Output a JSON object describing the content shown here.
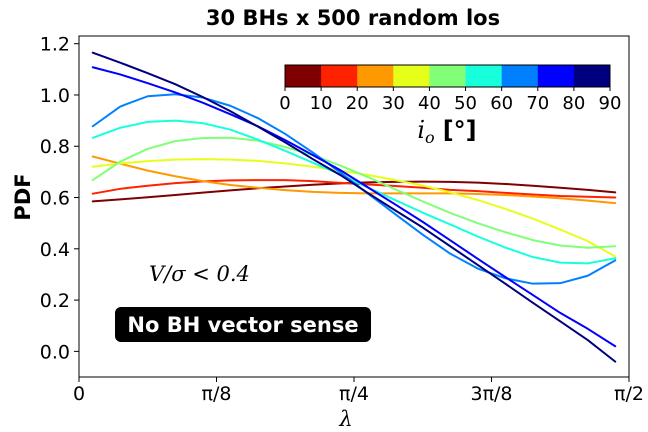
{
  "chart_data": {
    "type": "line",
    "title": "30 BHs x 500 random los",
    "xlabel": "λ",
    "ylabel": "PDF",
    "xlim": [
      0,
      1.5708
    ],
    "ylim": [
      -0.1,
      1.23
    ],
    "xticks": [
      0,
      0.3927,
      0.7854,
      1.1781,
      1.5708
    ],
    "xtick_labels": [
      "0",
      "π/8",
      "π/4",
      "3π/8",
      "π/2"
    ],
    "yticks": [
      0.0,
      0.2,
      0.4,
      0.6,
      0.8,
      1.0,
      1.2
    ],
    "ytick_labels": [
      "0.0",
      "0.2",
      "0.4",
      "0.6",
      "0.8",
      "1.0",
      "1.2"
    ],
    "grid": false,
    "x": [
      0.0393,
      0.1178,
      0.1963,
      0.2749,
      0.3534,
      0.432,
      0.5105,
      0.589,
      0.6676,
      0.7461,
      0.8247,
      0.9032,
      0.9817,
      1.0603,
      1.1388,
      1.2174,
      1.2959,
      1.3744,
      1.453,
      1.5315
    ],
    "series": [
      {
        "color": "#7f0000",
        "values": [
          0.585,
          0.593,
          0.601,
          0.61,
          0.619,
          0.628,
          0.636,
          0.643,
          0.65,
          0.655,
          0.659,
          0.661,
          0.662,
          0.661,
          0.658,
          0.653,
          0.646,
          0.638,
          0.63,
          0.62
        ]
      },
      {
        "color": "#ff2200",
        "values": [
          0.615,
          0.634,
          0.646,
          0.656,
          0.663,
          0.667,
          0.668,
          0.668,
          0.664,
          0.657,
          0.651,
          0.645,
          0.638,
          0.63,
          0.625,
          0.618,
          0.612,
          0.606,
          0.603,
          0.6
        ]
      },
      {
        "color": "#ff9900",
        "values": [
          0.76,
          0.732,
          0.705,
          0.683,
          0.664,
          0.649,
          0.638,
          0.629,
          0.622,
          0.618,
          0.616,
          0.616,
          0.616,
          0.616,
          0.614,
          0.61,
          0.604,
          0.597,
          0.588,
          0.578
        ]
      },
      {
        "color": "#e6ff1a",
        "values": [
          0.72,
          0.733,
          0.742,
          0.748,
          0.75,
          0.748,
          0.743,
          0.733,
          0.72,
          0.705,
          0.688,
          0.668,
          0.647,
          0.62,
          0.59,
          0.556,
          0.518,
          0.475,
          0.43,
          0.37
        ]
      },
      {
        "color": "#80ff77",
        "values": [
          0.668,
          0.74,
          0.79,
          0.82,
          0.832,
          0.833,
          0.822,
          0.797,
          0.765,
          0.725,
          0.68,
          0.632,
          0.585,
          0.54,
          0.5,
          0.465,
          0.434,
          0.413,
          0.404,
          0.41
        ]
      },
      {
        "color": "#18ffdc",
        "values": [
          0.833,
          0.872,
          0.895,
          0.9,
          0.89,
          0.865,
          0.826,
          0.782,
          0.736,
          0.69,
          0.639,
          0.59,
          0.541,
          0.495,
          0.448,
          0.405,
          0.368,
          0.346,
          0.343,
          0.363
        ]
      },
      {
        "color": "#0080ff",
        "values": [
          0.878,
          0.955,
          0.995,
          1.003,
          0.99,
          0.958,
          0.91,
          0.848,
          0.776,
          0.698,
          0.616,
          0.535,
          0.455,
          0.381,
          0.323,
          0.285,
          0.264,
          0.266,
          0.295,
          0.355
        ]
      },
      {
        "color": "#0000ff",
        "values": [
          1.108,
          1.08,
          1.046,
          1.01,
          0.97,
          0.925,
          0.878,
          0.824,
          0.766,
          0.707,
          0.64,
          0.573,
          0.505,
          0.433,
          0.361,
          0.29,
          0.22,
          0.15,
          0.088,
          0.02
        ]
      },
      {
        "color": "#00007f",
        "values": [
          1.165,
          1.126,
          1.085,
          1.042,
          0.992,
          0.937,
          0.877,
          0.815,
          0.75,
          0.688,
          0.618,
          0.55,
          0.483,
          0.41,
          0.337,
          0.264,
          0.19,
          0.117,
          0.044,
          -0.04
        ]
      }
    ],
    "colorbar": {
      "label_symbol": "i",
      "label_sub": "o",
      "label_unit": "[°]",
      "ticks": [
        "0",
        "10",
        "20",
        "30",
        "40",
        "50",
        "60",
        "70",
        "80",
        "90"
      ],
      "colors": [
        "#7f0000",
        "#ff2200",
        "#ff9900",
        "#e6ff1a",
        "#80ff77",
        "#18ffdc",
        "#0080ff",
        "#0000ff",
        "#00007f"
      ]
    },
    "annotations": {
      "condition": "V/σ < 0.4",
      "box": "No BH vector sense"
    }
  }
}
